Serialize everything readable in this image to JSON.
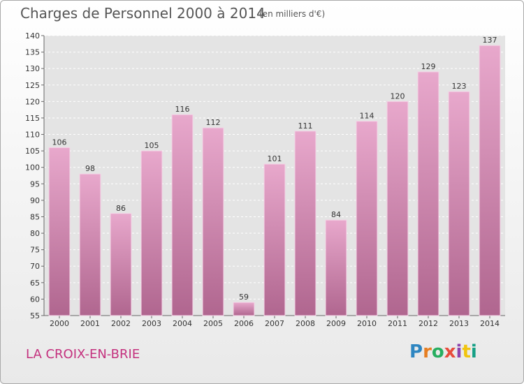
{
  "header": {
    "title": "Charges de Personnel 2000 à 2014",
    "subtitle": "(en milliers d'€)"
  },
  "footer": {
    "commune": "LA CROIX-EN-BRIE",
    "logo": "Proxiti",
    "logo_letters": [
      {
        "ch": "P",
        "color": "#2e86c1"
      },
      {
        "ch": "r",
        "color": "#e67e22"
      },
      {
        "ch": "o",
        "color": "#27ae60"
      },
      {
        "ch": "x",
        "color": "#e74c3c"
      },
      {
        "ch": "i",
        "color": "#8e44ad"
      },
      {
        "ch": "t",
        "color": "#f1c40f"
      },
      {
        "ch": "i",
        "color": "#16a085"
      }
    ]
  },
  "chart_data": {
    "type": "bar",
    "title": "Charges de Personnel 2000 à 2014",
    "subtitle": "(en milliers d'€)",
    "categories": [
      "2000",
      "2001",
      "2002",
      "2003",
      "2004",
      "2005",
      "2006",
      "2007",
      "2008",
      "2009",
      "2010",
      "2011",
      "2012",
      "2013",
      "2014"
    ],
    "values": [
      106,
      98,
      86,
      105,
      116,
      112,
      59,
      101,
      111,
      84,
      114,
      120,
      129,
      123,
      137
    ],
    "ylim": [
      55,
      140
    ],
    "yticks": [
      55,
      60,
      65,
      70,
      75,
      80,
      85,
      90,
      95,
      100,
      105,
      110,
      115,
      120,
      125,
      130,
      135,
      140
    ],
    "grid": true,
    "bar_color_top": "#e8a8cc",
    "bar_color_bottom": "#b0668f"
  }
}
